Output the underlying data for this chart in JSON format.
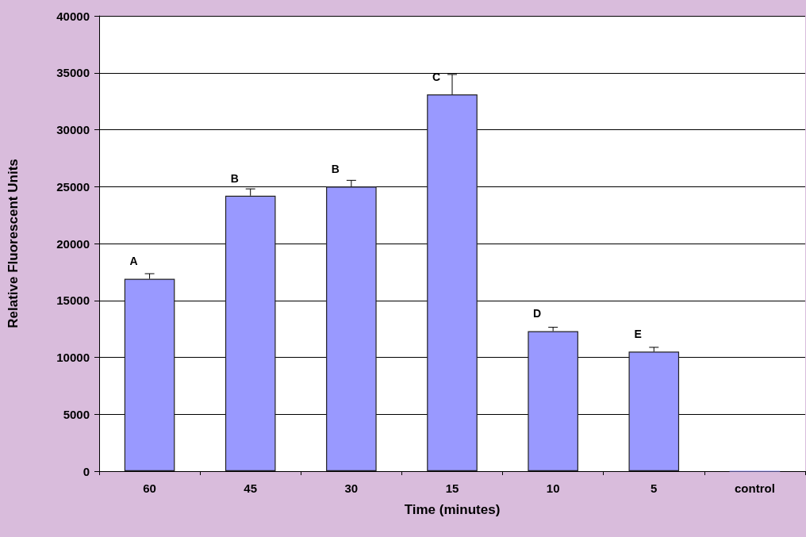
{
  "chart_data": {
    "type": "bar",
    "xlabel": "Time (minutes)",
    "ylabel": "Relative Fluorescent Units",
    "categories": [
      "60",
      "45",
      "30",
      "15",
      "10",
      "5",
      "control"
    ],
    "values": [
      16900,
      24200,
      25000,
      33100,
      12300,
      10500,
      0
    ],
    "errors": [
      [
        16900,
        17350
      ],
      [
        24200,
        24800
      ],
      [
        25000,
        25550
      ],
      [
        33100,
        34850
      ],
      [
        12300,
        12640
      ],
      [
        10500,
        10880
      ],
      null
    ],
    "color": "#9999ff",
    "ylim": [
      0,
      40000
    ],
    "yticks": [
      0,
      5000,
      10000,
      15000,
      20000,
      25000,
      30000,
      35000,
      40000
    ],
    "grid": "y",
    "annotations": [
      {
        "text": "A",
        "x": "60",
        "y": 16900
      },
      {
        "text": "B",
        "x": "45",
        "y": 24200
      },
      {
        "text": "B",
        "x": "30",
        "y": 25000
      },
      {
        "text": "C",
        "x": "15",
        "y": 33100
      },
      {
        "text": "D",
        "x": "10",
        "y": 12300
      },
      {
        "text": "E",
        "x": "5",
        "y": 10500
      }
    ]
  }
}
